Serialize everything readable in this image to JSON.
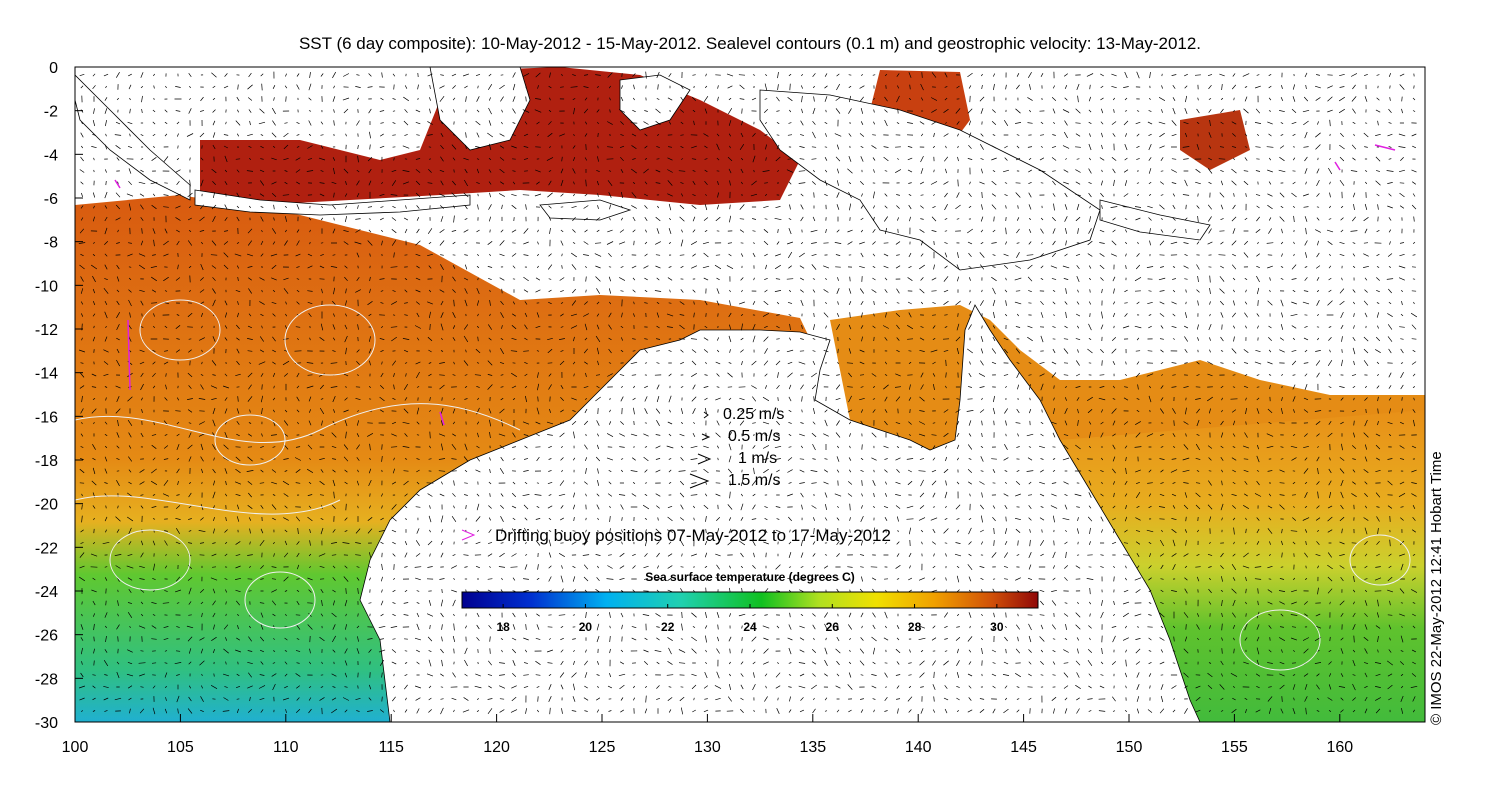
{
  "title": "SST (6 day composite): 10-May-2012 - 15-May-2012. Sealevel contours (0.1 m) and geostrophic velocity: 13-May-2012.",
  "credit": "© IMOS 22-May-2012 12:41 Hobart Time",
  "axes": {
    "x_ticks": [
      "100",
      "105",
      "110",
      "115",
      "120",
      "125",
      "130",
      "135",
      "140",
      "145",
      "150",
      "155",
      "160"
    ],
    "y_ticks": [
      "0",
      "-2",
      "-4",
      "-6",
      "-8",
      "-10",
      "-12",
      "-14",
      "-16",
      "-18",
      "-20",
      "-22",
      "-24",
      "-26",
      "-28",
      "-30"
    ]
  },
  "velocity_legend": [
    {
      "label": "0.25 m/s",
      "speed": 0.25
    },
    {
      "label": "0.5 m/s",
      "speed": 0.5
    },
    {
      "label": "1 m/s",
      "speed": 1
    },
    {
      "label": "1.5 m/s",
      "speed": 1.5
    }
  ],
  "buoy_legend": {
    "label": "Drifting buoy positions 07-May-2012 to 17-May-2012",
    "color": "#e020e0"
  },
  "colorbar": {
    "title": "Sea surface temperature (degrees C)",
    "min": 17,
    "max": 31,
    "ticks": [
      "18",
      "20",
      "22",
      "24",
      "26",
      "28",
      "30"
    ]
  },
  "colors": {
    "land": "#ffffff",
    "coast": "#000000",
    "contour": "#f0f0f0",
    "sst_warm": "#e07010",
    "sst_hot": "#b01808",
    "sst_mid": "#e8a010",
    "sst_cool": "#40c040"
  }
}
